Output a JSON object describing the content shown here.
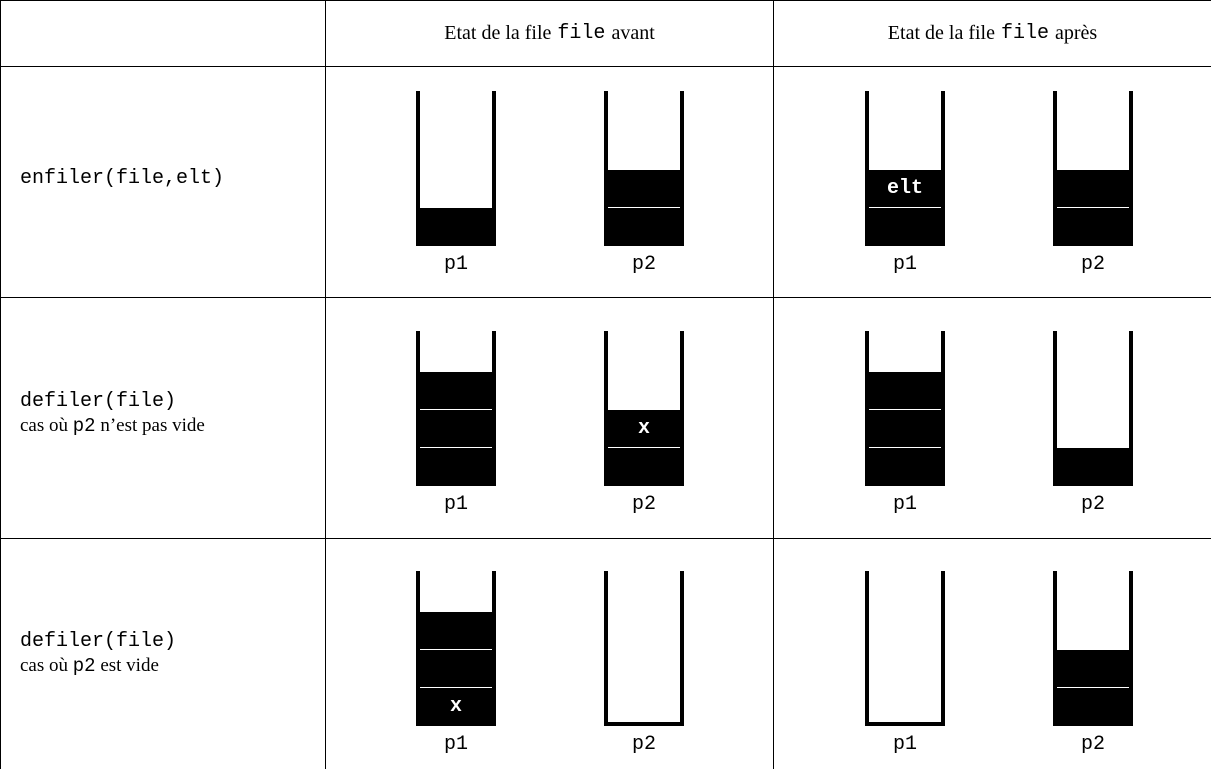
{
  "header": {
    "before_prefix": "Etat de la file",
    "before_code": "file",
    "before_suffix": "avant",
    "after_prefix": "Etat de la file",
    "after_code": "file",
    "after_suffix": "après"
  },
  "rows": [
    {
      "call": "enfiler(file,elt)",
      "note": null,
      "before": {
        "p1": {
          "count": 1,
          "label": ""
        },
        "p2": {
          "count": 2,
          "label": ""
        }
      },
      "after": {
        "p1": {
          "count": 2,
          "label": "elt"
        },
        "p2": {
          "count": 2,
          "label": ""
        }
      }
    },
    {
      "call": "defiler(file)",
      "note": {
        "prefix": "cas où",
        "code": "p2",
        "suffix": "n’est pas vide"
      },
      "before": {
        "p1": {
          "count": 3,
          "label": ""
        },
        "p2": {
          "count": 2,
          "label": "x"
        }
      },
      "after": {
        "p1": {
          "count": 3,
          "label": ""
        },
        "p2": {
          "count": 1,
          "label": ""
        }
      }
    },
    {
      "call": "defiler(file)",
      "note": {
        "prefix": "cas où",
        "code": "p2",
        "suffix": "est vide"
      },
      "before": {
        "p1": {
          "count": 3,
          "label": "x",
          "label_slot": "bottom"
        },
        "p2": {
          "count": 0,
          "label": ""
        }
      },
      "after": {
        "p1": {
          "count": 0,
          "label": ""
        },
        "p2": {
          "count": 2,
          "label": ""
        }
      }
    }
  ],
  "stack_names": {
    "p1": "p1",
    "p2": "p2"
  }
}
